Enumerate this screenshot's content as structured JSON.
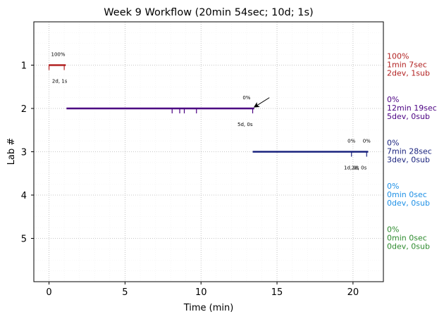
{
  "chart_data": {
    "type": "timeline",
    "title": "Week 9 Workflow (20min 54sec; 10d; 1s)",
    "xlabel": "Time (min)",
    "ylabel": "Lab #",
    "xlim": [
      -1,
      22
    ],
    "ylim": [
      6,
      0
    ],
    "x_ticks": [
      0,
      5,
      10,
      15,
      20
    ],
    "y_ticks": [
      1,
      2,
      3,
      4,
      5
    ],
    "grid": true,
    "labs": [
      {
        "lab": 1,
        "color": "#b22222",
        "start": 0.0,
        "end": 1.1,
        "event_ticks": [
          0.0,
          1.0
        ],
        "progress_labels": [
          {
            "x": 0.6,
            "text": "100%"
          }
        ],
        "count_labels": [
          {
            "x": 0.7,
            "text": "2d, 1s"
          }
        ],
        "side_lines": [
          "100%",
          "1min 7sec",
          "2dev, 1sub"
        ]
      },
      {
        "lab": 2,
        "color": "#4b0082",
        "start": 1.15,
        "end": 13.5,
        "event_ticks": [
          8.1,
          8.6,
          8.9,
          9.7,
          13.4
        ],
        "progress_labels": [
          {
            "x": 13.0,
            "text": "0%"
          }
        ],
        "count_labels": [
          {
            "x": 12.9,
            "text": "5d, 0s"
          }
        ],
        "side_lines": [
          "0%",
          "12min 19sec",
          "5dev, 0sub"
        ]
      },
      {
        "lab": 3,
        "color": "#1a237e",
        "start": 13.4,
        "end": 21.0,
        "event_ticks": [
          19.9,
          20.9
        ],
        "progress_labels": [
          {
            "x": 19.9,
            "text": "0%"
          },
          {
            "x": 20.9,
            "text": "0%"
          }
        ],
        "count_labels": [
          {
            "x": 19.9,
            "text": "1d, 0s"
          },
          {
            "x": 20.4,
            "text": "2d, 0s"
          }
        ],
        "side_lines": [
          "0%",
          "7min 28sec",
          "3dev, 0sub"
        ]
      },
      {
        "lab": 4,
        "color": "#1e90e6",
        "side_lines": [
          "0%",
          "0min 0sec",
          "0dev, 0sub"
        ]
      },
      {
        "lab": 5,
        "color": "#2e8b2e",
        "side_lines": [
          "0%",
          "0min 0sec",
          "0dev, 0sub"
        ]
      }
    ],
    "annotation": {
      "type": "arrow",
      "from": [
        14.5,
        1.75
      ],
      "to": [
        13.5,
        1.97
      ]
    }
  }
}
